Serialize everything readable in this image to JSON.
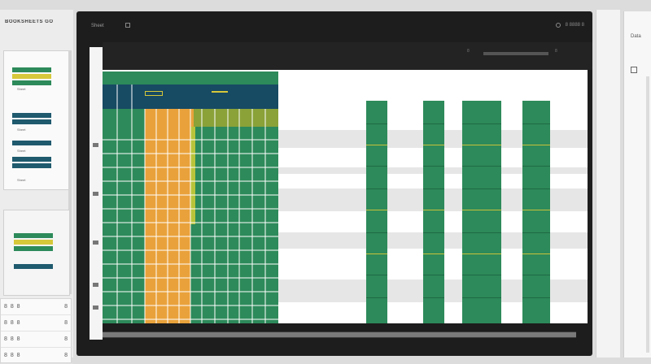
{
  "sidebar": {
    "title": "BOOKSHEETS GO",
    "thumbnails": [
      {
        "caption": "Sheet"
      },
      {
        "caption": "Sheet"
      },
      {
        "caption": "Sheet"
      },
      {
        "caption": "Sheet"
      }
    ],
    "files": [
      {
        "glyphs": "8 8 8",
        "num": "8"
      },
      {
        "glyphs": "8 8 8",
        "num": "8"
      },
      {
        "glyphs": "8 8 8",
        "num": "8"
      },
      {
        "glyphs": "8 8 8",
        "num": "8"
      }
    ]
  },
  "window": {
    "title": "Sheet",
    "right_label": "8 8888 8"
  },
  "toolbar": {
    "zoom_label": "8",
    "zoom_value_label": "8"
  },
  "right_panel": {
    "tab_label": "Data"
  },
  "colors": {
    "green": "#2d8a5a",
    "navy": "#174a63",
    "orange": "#e9a23b",
    "yellow": "#d6c83a",
    "stripe": "#e6e6e6"
  },
  "icons": {
    "window": "square-icon",
    "settings": "gear-icon",
    "panel": "square-icon"
  }
}
